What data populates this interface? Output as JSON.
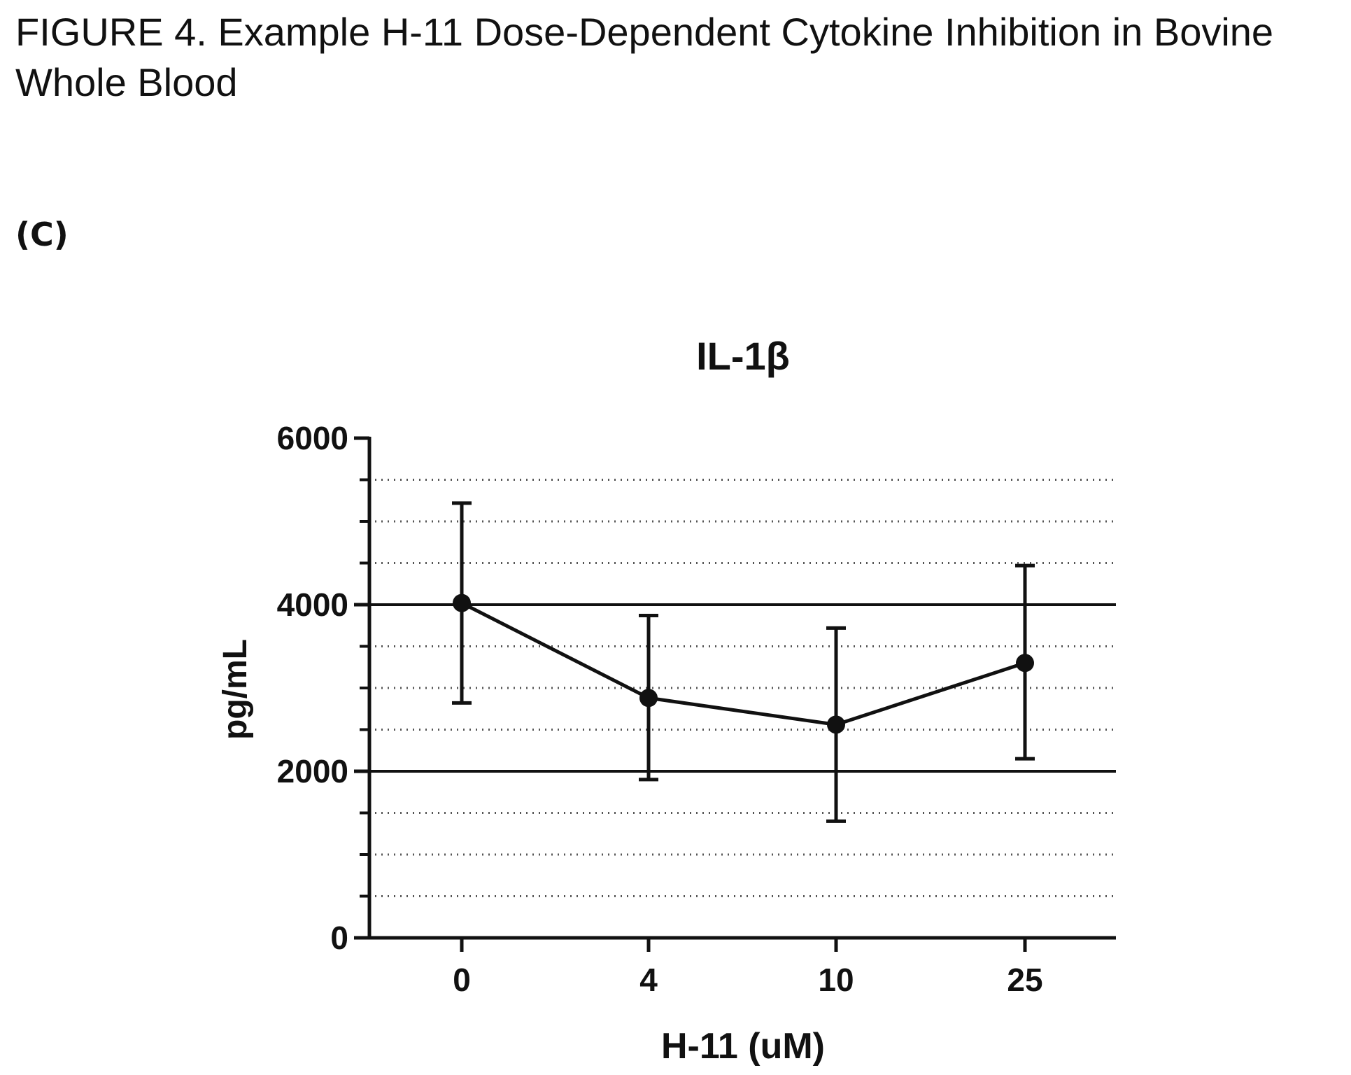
{
  "figure": {
    "caption_line1": "FIGURE 4.  Example H-11 Dose-Dependent Cytokine Inhibition in Bovine",
    "caption_line2": "Whole Blood",
    "panel_label": "(C)"
  },
  "chart_data": {
    "type": "line",
    "title": "IL-1β",
    "xlabel": "H-11 (uM)",
    "ylabel": "pg/mL",
    "categories": [
      "0",
      "4",
      "10",
      "25"
    ],
    "series": [
      {
        "values": [
          4020,
          2880,
          2560,
          3300
        ],
        "error_low": [
          2820,
          1900,
          1400,
          2150
        ],
        "error_high": [
          5220,
          3870,
          3720,
          4470
        ]
      }
    ],
    "ylim": [
      0,
      6000
    ],
    "yticks": [
      0,
      2000,
      4000,
      6000
    ],
    "minor_ytick_step": 500,
    "reference_lines": [
      2000,
      4000
    ],
    "grid": "dotted horizontal",
    "colors": {
      "ink": "#111111",
      "grid": "#555555"
    }
  }
}
